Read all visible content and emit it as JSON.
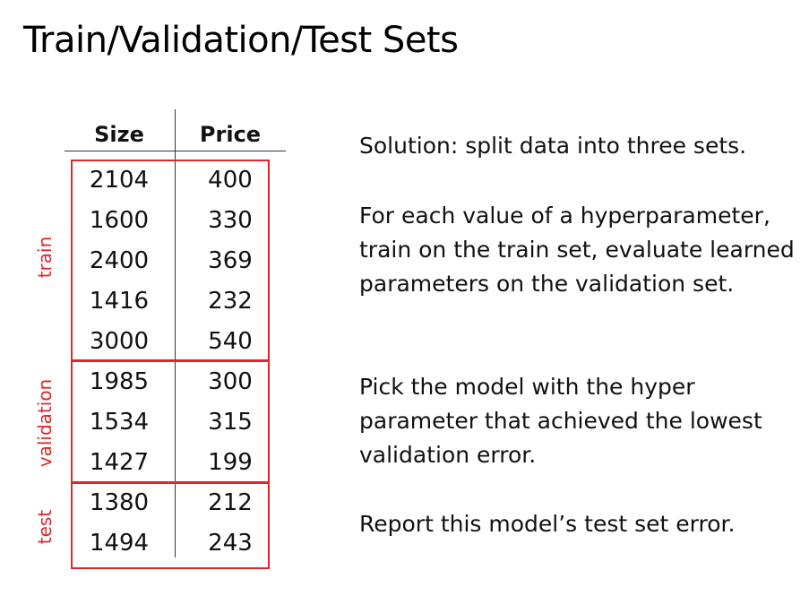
{
  "slide": {
    "title": "Train/Validation/Test Sets"
  },
  "table": {
    "columns": [
      "Size",
      "Price"
    ],
    "rows": [
      [
        "2104",
        "400"
      ],
      [
        "1600",
        "330"
      ],
      [
        "2400",
        "369"
      ],
      [
        "1416",
        "232"
      ],
      [
        "3000",
        "540"
      ],
      [
        "1985",
        "300"
      ],
      [
        "1534",
        "315"
      ],
      [
        "1427",
        "199"
      ],
      [
        "1380",
        "212"
      ],
      [
        "1494",
        "243"
      ]
    ]
  },
  "groups": {
    "train": "train",
    "validation": "validation",
    "test": "test"
  },
  "text": {
    "p1": "Solution: split data into three sets.",
    "p2": "For each value of a hyperparameter, train on the train set, evaluate learned parameters on the validation set.",
    "p3": "Pick the model with the hyper parameter that achieved the lowest validation error.",
    "p4": "Report this model’s test set error."
  },
  "colors": {
    "accent": "#e0262b"
  }
}
